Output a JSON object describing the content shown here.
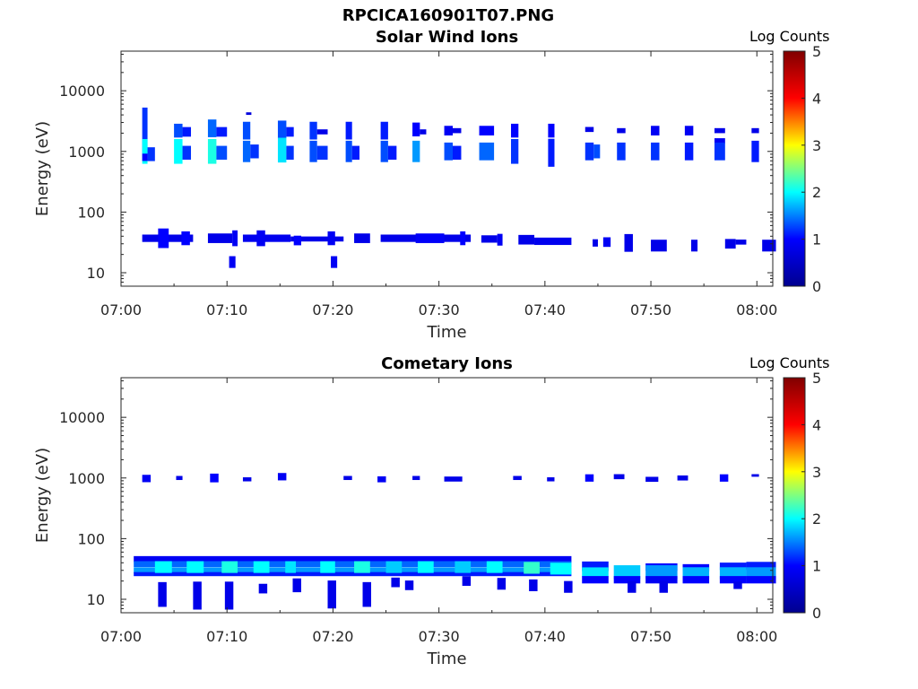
{
  "figure": {
    "title": "RPCICA160901T07.PNG"
  },
  "chart_data": [
    {
      "type": "heatmap",
      "title": "Solar Wind Ions",
      "xlabel": "Time",
      "ylabel": "Energy (eV)",
      "yscale": "log",
      "ylim": [
        6,
        45000
      ],
      "xlim_minutes": [
        0,
        61.5
      ],
      "x_ticks": [
        "07:00",
        "07:10",
        "07:20",
        "07:30",
        "07:40",
        "07:50",
        "08:00"
      ],
      "y_ticks": [
        "10",
        "100",
        "1000",
        "10000"
      ],
      "colorbar": {
        "label": "Log Counts",
        "range": [
          0,
          5
        ],
        "ticks": [
          "0",
          "1",
          "2",
          "3",
          "4",
          "5"
        ]
      },
      "colormap": [
        "#00008f",
        "#0000ff",
        "#00ffff",
        "#ffff00",
        "#ff0000",
        "#800000"
      ],
      "cells": [
        [
          2,
          2.5,
          2200,
          2.4,
          1.2
        ],
        [
          2,
          2.5,
          1000,
          1.6,
          2.0
        ],
        [
          2,
          2.5,
          800,
          1.15,
          1.0
        ],
        [
          2.5,
          3.2,
          900,
          1.3,
          1.2
        ],
        [
          5,
          5.8,
          2200,
          1.3,
          1.3
        ],
        [
          5,
          5.8,
          1000,
          1.6,
          2.0
        ],
        [
          5.8,
          6.6,
          2100,
          1.2,
          1.1
        ],
        [
          5.8,
          6.6,
          950,
          1.3,
          1.2
        ],
        [
          8.2,
          9.0,
          2400,
          1.4,
          1.4
        ],
        [
          8.2,
          9.0,
          1000,
          1.6,
          2.1
        ],
        [
          9.0,
          10,
          2100,
          1.2,
          1.1
        ],
        [
          9.0,
          10,
          950,
          1.3,
          1.3
        ],
        [
          11.5,
          12.2,
          2200,
          1.4,
          1.3
        ],
        [
          11.5,
          12.2,
          1000,
          1.5,
          1.4
        ],
        [
          11.8,
          12.3,
          4200,
          1.05,
          0.7
        ],
        [
          12.2,
          13,
          1000,
          1.3,
          1.2
        ],
        [
          14.8,
          15.6,
          2300,
          1.4,
          1.3
        ],
        [
          14.8,
          15.6,
          1050,
          1.6,
          1.9
        ],
        [
          15.6,
          16.3,
          2100,
          1.2,
          1.1
        ],
        [
          15.6,
          16.3,
          950,
          1.3,
          1.2
        ],
        [
          17.8,
          18.5,
          2200,
          1.4,
          1.2
        ],
        [
          17.8,
          18.5,
          1000,
          1.5,
          1.3
        ],
        [
          18.5,
          19.5,
          2100,
          1.1,
          0.8
        ],
        [
          18.5,
          19.5,
          950,
          1.3,
          1.2
        ],
        [
          21.2,
          21.8,
          2200,
          1.4,
          1.1
        ],
        [
          21.2,
          21.8,
          1000,
          1.5,
          1.3
        ],
        [
          21.8,
          22.5,
          950,
          1.3,
          1.1
        ],
        [
          24.5,
          25.2,
          2200,
          1.4,
          1.1
        ],
        [
          24.5,
          25.2,
          1000,
          1.5,
          1.3
        ],
        [
          25.2,
          26,
          950,
          1.3,
          1.1
        ],
        [
          27.5,
          28.2,
          2300,
          1.3,
          1.0
        ],
        [
          27.5,
          28.2,
          1000,
          1.5,
          1.6
        ],
        [
          28.2,
          28.8,
          2100,
          1.1,
          0.8
        ],
        [
          30.5,
          31.3,
          2200,
          1.2,
          0.9
        ],
        [
          30.5,
          31.3,
          1000,
          1.4,
          1.3
        ],
        [
          31.3,
          32.1,
          2200,
          1.1,
          0.8
        ],
        [
          31.3,
          32.1,
          950,
          1.3,
          1.1
        ],
        [
          33.8,
          35.2,
          2200,
          1.2,
          1.0
        ],
        [
          33.8,
          35.2,
          1000,
          1.4,
          1.4
        ],
        [
          36.8,
          37.5,
          2200,
          1.3,
          1.0
        ],
        [
          36.8,
          37.5,
          1000,
          1.6,
          1.2
        ],
        [
          40.3,
          40.9,
          2200,
          1.3,
          1.0
        ],
        [
          40.3,
          40.9,
          950,
          1.7,
          1.1
        ],
        [
          43.8,
          44.6,
          2300,
          1.1,
          0.8
        ],
        [
          43.8,
          44.6,
          1000,
          1.4,
          1.2
        ],
        [
          44.6,
          45.2,
          1000,
          1.3,
          1.3
        ],
        [
          46.8,
          47.6,
          2200,
          1.1,
          0.8
        ],
        [
          46.8,
          47.6,
          1000,
          1.4,
          1.2
        ],
        [
          50,
          50.8,
          2200,
          1.2,
          0.9
        ],
        [
          50,
          50.8,
          1000,
          1.4,
          1.2
        ],
        [
          53.2,
          54,
          2200,
          1.2,
          0.9
        ],
        [
          53.2,
          54,
          1000,
          1.4,
          1.1
        ],
        [
          56,
          57,
          2200,
          1.1,
          0.8
        ],
        [
          56,
          57,
          1500,
          1.1,
          0.9
        ],
        [
          56,
          57,
          1000,
          1.4,
          1.2
        ],
        [
          59.5,
          60.2,
          2200,
          1.1,
          0.8
        ],
        [
          59.5,
          60.2,
          1000,
          1.5,
          1.1
        ],
        [
          2,
          6.8,
          37,
          1.15,
          0.8
        ],
        [
          3.5,
          4.5,
          37,
          1.45,
          1.0
        ],
        [
          5.7,
          6.5,
          37,
          1.3,
          1.0
        ],
        [
          8.2,
          10.5,
          37,
          1.2,
          0.8
        ],
        [
          10.5,
          11,
          37,
          1.35,
          0.9
        ],
        [
          11.5,
          16,
          37,
          1.15,
          0.85
        ],
        [
          12.8,
          13.6,
          37,
          1.35,
          0.9
        ],
        [
          16,
          21,
          36,
          1.1,
          0.8
        ],
        [
          16.3,
          17,
          34,
          1.2,
          1.0
        ],
        [
          19.5,
          20.2,
          37,
          1.3,
          0.9
        ],
        [
          22,
          23.5,
          37,
          1.2,
          0.8
        ],
        [
          24.5,
          33,
          37,
          1.15,
          0.8
        ],
        [
          27.8,
          30.5,
          37,
          1.2,
          0.95
        ],
        [
          32,
          32.5,
          37,
          1.3,
          1.0
        ],
        [
          34,
          35.5,
          36,
          1.15,
          0.8
        ],
        [
          35.5,
          36,
          35,
          1.25,
          0.9
        ],
        [
          37.5,
          39,
          35,
          1.2,
          0.8
        ],
        [
          39,
          42.5,
          33,
          1.15,
          0.85
        ],
        [
          44.5,
          45,
          31,
          1.15,
          0.8
        ],
        [
          45.5,
          46.2,
          32,
          1.2,
          0.9
        ],
        [
          47.5,
          48.3,
          31,
          1.4,
          0.8
        ],
        [
          50,
          51.5,
          28,
          1.25,
          0.8
        ],
        [
          53.8,
          54.4,
          28,
          1.25,
          0.8
        ],
        [
          57,
          58,
          30,
          1.2,
          0.8
        ],
        [
          58,
          59,
          32,
          1.1,
          0.8
        ],
        [
          60.5,
          61.8,
          28,
          1.25,
          0.8
        ],
        [
          10.2,
          10.8,
          15,
          1.25,
          0.9
        ],
        [
          19.8,
          20.4,
          15,
          1.25,
          0.9
        ]
      ]
    },
    {
      "type": "heatmap",
      "title": "Cometary Ions",
      "xlabel": "Time",
      "ylabel": "Energy (eV)",
      "yscale": "log",
      "ylim": [
        6,
        45000
      ],
      "xlim_minutes": [
        0,
        61.5
      ],
      "x_ticks": [
        "07:00",
        "07:10",
        "07:20",
        "07:30",
        "07:40",
        "07:50",
        "08:00"
      ],
      "y_ticks": [
        "10",
        "100",
        "1000",
        "10000"
      ],
      "colorbar": {
        "label": "Log Counts",
        "range": [
          0,
          5
        ],
        "ticks": [
          "0",
          "1",
          "2",
          "3",
          "4",
          "5"
        ]
      },
      "colormap": [
        "#00008f",
        "#0000ff",
        "#00ffff",
        "#ffff00",
        "#ff0000",
        "#800000"
      ],
      "cells": [
        [
          2,
          2.8,
          980,
          1.15,
          0.9
        ],
        [
          5.2,
          5.8,
          1000,
          1.08,
          0.8
        ],
        [
          8.4,
          9.2,
          1000,
          1.18,
          1.0
        ],
        [
          11.5,
          12.3,
          950,
          1.08,
          0.8
        ],
        [
          14.8,
          15.6,
          1050,
          1.15,
          0.9
        ],
        [
          21,
          21.8,
          1000,
          1.08,
          0.8
        ],
        [
          24.2,
          25,
          950,
          1.12,
          0.9
        ],
        [
          27.5,
          28.2,
          1000,
          1.08,
          0.8
        ],
        [
          30.5,
          32.2,
          960,
          1.1,
          0.8
        ],
        [
          37,
          37.8,
          1000,
          1.08,
          0.8
        ],
        [
          40.2,
          40.9,
          950,
          1.08,
          0.8
        ],
        [
          43.8,
          44.6,
          1000,
          1.15,
          1.0
        ],
        [
          46.5,
          47.5,
          1050,
          1.1,
          0.8
        ],
        [
          49.5,
          50.7,
          950,
          1.1,
          0.8
        ],
        [
          52.5,
          53.5,
          1000,
          1.1,
          0.8
        ],
        [
          56.5,
          57.3,
          1000,
          1.15,
          1.0
        ],
        [
          59.5,
          60.2,
          1100,
          1.05,
          0.8
        ],
        [
          1.2,
          42.5,
          46,
          1.12,
          0.9
        ],
        [
          1.2,
          42.5,
          38,
          1.12,
          1.4
        ],
        [
          1.2,
          42.5,
          30,
          1.12,
          1.6
        ],
        [
          1.2,
          42.5,
          26,
          1.08,
          1.1
        ],
        [
          3.2,
          4.8,
          34,
          1.25,
          2.0
        ],
        [
          6.2,
          7.8,
          34,
          1.25,
          2.0
        ],
        [
          9.5,
          11,
          34,
          1.25,
          2.1
        ],
        [
          12.5,
          14,
          34,
          1.25,
          2.0
        ],
        [
          15.5,
          16.5,
          34,
          1.25,
          1.9
        ],
        [
          18.8,
          20.2,
          34,
          1.25,
          2.0
        ],
        [
          22,
          23.5,
          34,
          1.25,
          2.1
        ],
        [
          25,
          26.5,
          34,
          1.25,
          1.8
        ],
        [
          28,
          29.5,
          34,
          1.25,
          2.0
        ],
        [
          31.5,
          33,
          34,
          1.25,
          1.8
        ],
        [
          34.5,
          36,
          34,
          1.25,
          2.0
        ],
        [
          38,
          39.5,
          33,
          1.25,
          2.2
        ],
        [
          40.5,
          42.5,
          32,
          1.25,
          2.0
        ],
        [
          43.5,
          46,
          35,
          1.2,
          1.1
        ],
        [
          43.5,
          46,
          28,
          1.2,
          1.9
        ],
        [
          43.5,
          46,
          21,
          1.15,
          1.0
        ],
        [
          46.5,
          49,
          28,
          1.3,
          1.8
        ],
        [
          46.5,
          49,
          21,
          1.15,
          1.0
        ],
        [
          49.5,
          52.5,
          34,
          1.15,
          1.0
        ],
        [
          49.5,
          52.5,
          28,
          1.3,
          1.6
        ],
        [
          49.5,
          52.5,
          21,
          1.15,
          0.9
        ],
        [
          53,
          55.5,
          33,
          1.15,
          1.0
        ],
        [
          53,
          55.5,
          27,
          1.25,
          1.7
        ],
        [
          53,
          55.5,
          21,
          1.15,
          1.0
        ],
        [
          56.5,
          59,
          35,
          1.15,
          1.1
        ],
        [
          56.5,
          59,
          27,
          1.25,
          1.7
        ],
        [
          56.5,
          59,
          21,
          1.15,
          1.0
        ],
        [
          59,
          61.8,
          36,
          1.15,
          1.1
        ],
        [
          59,
          61.8,
          27,
          1.25,
          1.6
        ],
        [
          59,
          61.8,
          21,
          1.15,
          1.0
        ],
        [
          3.5,
          4.3,
          12,
          1.6,
          0.8
        ],
        [
          6.8,
          7.6,
          11.5,
          1.7,
          0.8
        ],
        [
          9.8,
          10.6,
          11.5,
          1.7,
          0.8
        ],
        [
          13,
          13.8,
          15,
          1.2,
          0.8
        ],
        [
          16.2,
          17,
          17,
          1.3,
          0.8
        ],
        [
          19.5,
          20.3,
          12,
          1.7,
          0.8
        ],
        [
          22.8,
          23.6,
          12,
          1.6,
          0.8
        ],
        [
          25.5,
          26.3,
          19,
          1.2,
          0.8
        ],
        [
          26.8,
          27.6,
          17,
          1.2,
          0.8
        ],
        [
          32.2,
          33,
          20,
          1.2,
          0.8
        ],
        [
          35.5,
          36.3,
          18,
          1.25,
          0.8
        ],
        [
          38.5,
          39.3,
          17,
          1.25,
          0.8
        ],
        [
          41.8,
          42.6,
          16,
          1.25,
          0.8
        ],
        [
          47.8,
          48.6,
          16,
          1.25,
          0.8
        ],
        [
          50.8,
          51.6,
          16,
          1.25,
          0.8
        ],
        [
          57.8,
          58.6,
          17,
          1.15,
          0.8
        ]
      ]
    }
  ]
}
